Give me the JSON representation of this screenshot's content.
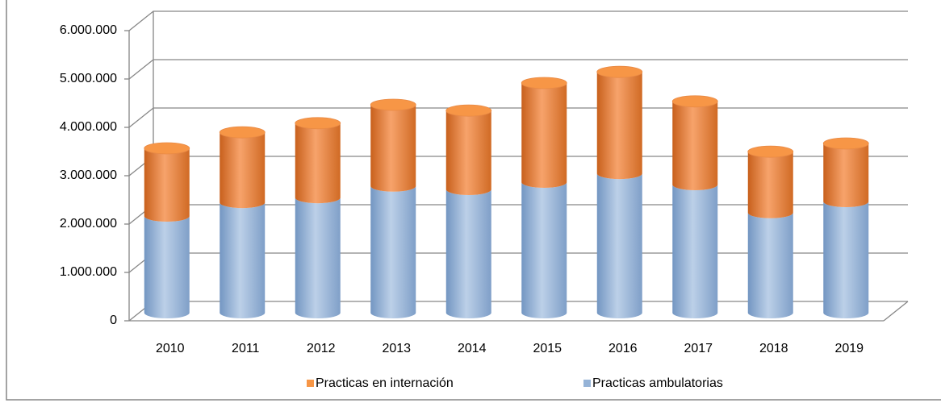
{
  "chart_data": {
    "type": "bar3d_stacked_cylinder",
    "categories": [
      "2010",
      "2011",
      "2012",
      "2013",
      "2014",
      "2015",
      "2016",
      "2017",
      "2018",
      "2019"
    ],
    "series": [
      {
        "name": "Practicas ambulatorias",
        "color": "#95b3d7",
        "values": [
          2000000,
          2280000,
          2380000,
          2620000,
          2550000,
          2700000,
          2880000,
          2650000,
          2070000,
          2300000
        ]
      },
      {
        "name": "Practicas en internación",
        "color": "#f79646",
        "values": [
          1400000,
          1450000,
          1540000,
          1680000,
          1630000,
          2050000,
          2100000,
          1720000,
          1260000,
          1200000
        ]
      }
    ],
    "stacked": true,
    "ylim": [
      0,
      6000000
    ],
    "yticks": [
      0,
      {
        "value": 1000000,
        "label": "1.000.000"
      },
      {
        "value": 2000000,
        "label": "2.000.000"
      },
      {
        "value": 3000000,
        "label": "3.000.000"
      },
      {
        "value": 4000000,
        "label": "4.000.000"
      },
      {
        "value": 5000000,
        "label": "5.000.000"
      },
      {
        "value": 6000000,
        "label": "6.000.000"
      }
    ],
    "grid": true,
    "legend": "bottom"
  }
}
